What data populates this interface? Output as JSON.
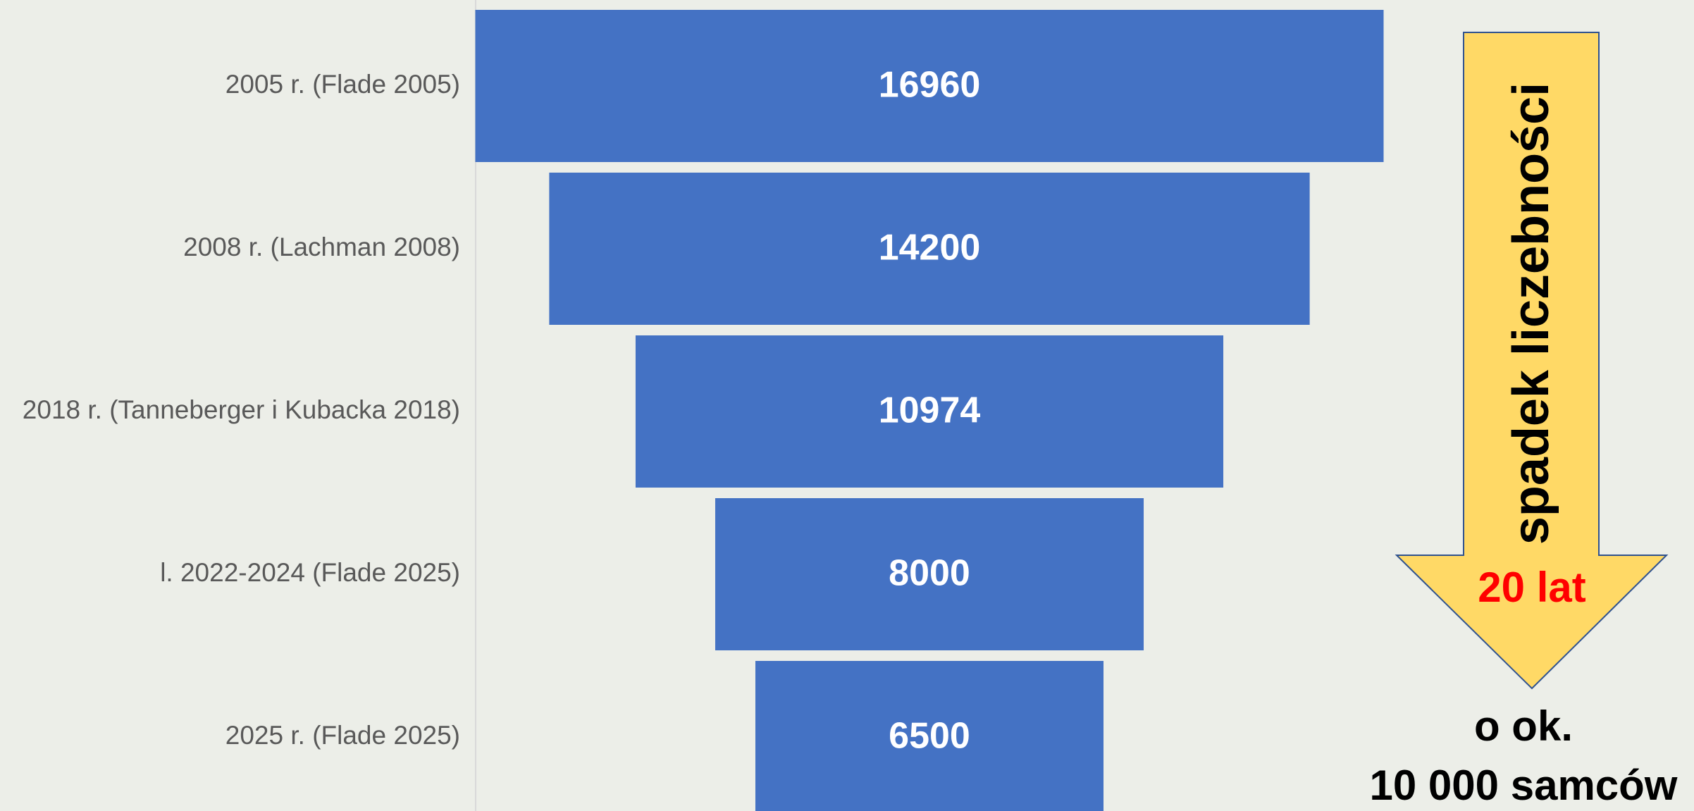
{
  "chart_data": {
    "type": "funnel",
    "categories": [
      "2005 r. (Flade 2005)",
      "2008 r. (Lachman 2008)",
      "2018 r. (Tanneberger i Kubacka 2018)",
      "l. 2022-2024 (Flade 2025)",
      "2025 r. (Flade 2025)"
    ],
    "values": [
      16960,
      14200,
      10974,
      8000,
      6500
    ],
    "color": "#4472c4",
    "annotations": [
      "spadek liczebności",
      "20 lat",
      "o ok.",
      "10 000 samców"
    ]
  }
}
